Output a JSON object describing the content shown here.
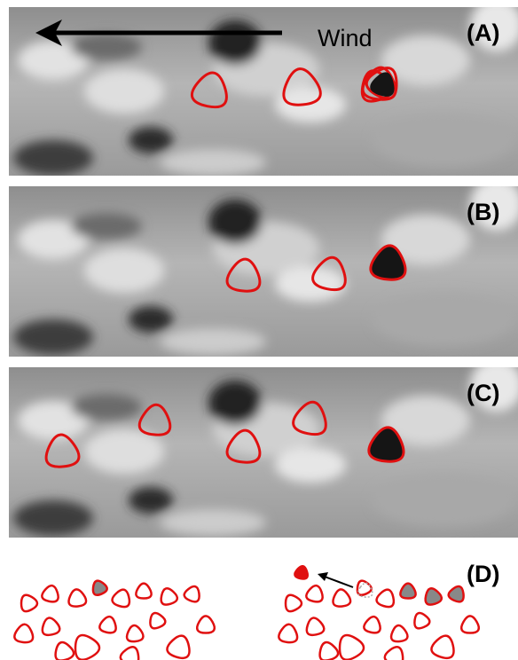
{
  "panels": [
    {
      "label": "(A)",
      "annotation": "Wind"
    },
    {
      "label": "(B)"
    },
    {
      "label": "(C)"
    },
    {
      "label": "(D)"
    }
  ]
}
